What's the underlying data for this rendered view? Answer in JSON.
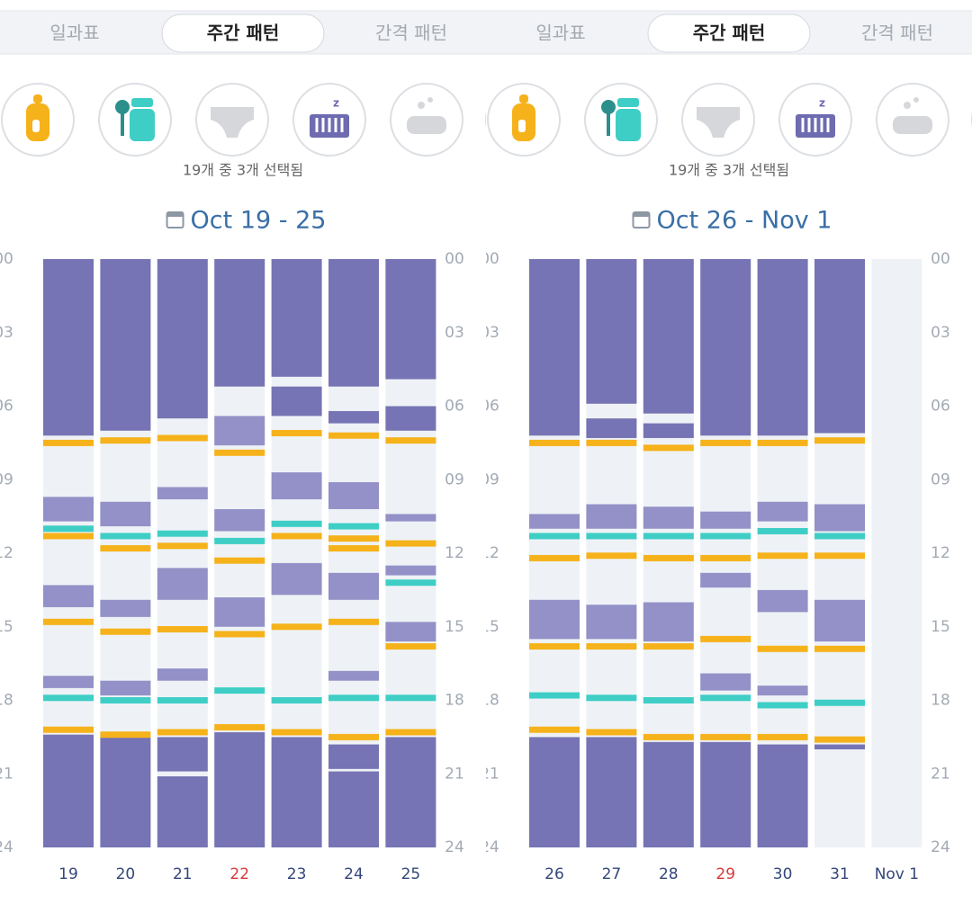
{
  "colors": {
    "sleep": "#7674b4",
    "nap": "#9391c8",
    "feed": "#f6b21a",
    "solid": "#3fcec6",
    "column": "#eef2f6",
    "day": "#34477a",
    "day_highlight": "#d93a3a"
  },
  "panels": [
    {
      "tabs": [
        "일과표",
        "주간 패턴",
        "간격 패턴"
      ],
      "selected_tab": 1,
      "selection": "19개 중 3개 선택됨",
      "title": "Oct 19 - 25",
      "chart": {
        "ylim": [
          0,
          24
        ],
        "yticks": [
          {
            "value": 0,
            "label": "00"
          },
          {
            "value": 3,
            "label": "03"
          },
          {
            "value": 6,
            "label": "06"
          },
          {
            "value": 9,
            "label": "09"
          },
          12,
          15,
          18,
          21,
          24
        ],
        "days": [
          {
            "label": "19",
            "highlight": false,
            "sleep": [
              [
                0,
                7.2
              ],
              [
                19.4,
                24
              ]
            ],
            "nap": [
              [
                9.7,
                10.7
              ],
              [
                13.3,
                14.2
              ],
              [
                17.0,
                17.5
              ]
            ],
            "feed": [
              7.5,
              11.3,
              14.8,
              19.2
            ],
            "solid": [
              11.0,
              17.9
            ]
          },
          {
            "label": "20",
            "highlight": false,
            "sleep": [
              [
                0,
                7.0
              ],
              [
                19.5,
                24
              ]
            ],
            "nap": [
              [
                9.9,
                10.9
              ],
              [
                13.9,
                14.6
              ],
              [
                17.2,
                17.8
              ]
            ],
            "feed": [
              7.4,
              11.8,
              15.2,
              19.4
            ],
            "solid": [
              11.3,
              18.0
            ]
          },
          {
            "label": "21",
            "highlight": false,
            "sleep": [
              [
                0,
                6.5
              ],
              [
                19.5,
                20.9
              ],
              [
                21.1,
                24
              ]
            ],
            "nap": [
              [
                9.3,
                9.8
              ],
              [
                12.6,
                13.9
              ],
              [
                16.7,
                17.2
              ]
            ],
            "feed": [
              7.3,
              11.7,
              15.1,
              19.3
            ],
            "solid": [
              11.2,
              18.0
            ]
          },
          {
            "label": "22",
            "highlight": true,
            "sleep": [
              [
                0,
                5.2
              ],
              [
                19.3,
                24
              ]
            ],
            "nap": [
              [
                6.4,
                7.6
              ],
              [
                10.2,
                11.1
              ],
              [
                13.8,
                15.0
              ]
            ],
            "feed": [
              7.9,
              12.3,
              15.3,
              19.1
            ],
            "solid": [
              11.5,
              17.6
            ]
          },
          {
            "label": "23",
            "highlight": false,
            "sleep": [
              [
                0,
                4.8
              ],
              [
                5.2,
                6.4
              ],
              [
                19.5,
                24
              ]
            ],
            "nap": [
              [
                8.7,
                9.8
              ],
              [
                12.4,
                13.7
              ]
            ],
            "feed": [
              7.1,
              11.3,
              15.0,
              19.3
            ],
            "solid": [
              10.8,
              18.0
            ]
          },
          {
            "label": "24",
            "highlight": false,
            "sleep": [
              [
                0,
                5.2
              ],
              [
                6.2,
                6.7
              ],
              [
                19.8,
                20.8
              ],
              [
                20.9,
                24
              ]
            ],
            "nap": [
              [
                9.1,
                10.2
              ],
              [
                12.8,
                13.9
              ],
              [
                16.8,
                17.2
              ]
            ],
            "feed": [
              7.2,
              11.4,
              11.8,
              14.8,
              19.5
            ],
            "solid": [
              10.9,
              17.9
            ]
          },
          {
            "label": "25",
            "highlight": false,
            "sleep": [
              [
                0,
                4.9
              ],
              [
                6.0,
                7.0
              ],
              [
                19.5,
                24
              ]
            ],
            "nap": [
              [
                10.4,
                10.7
              ],
              [
                12.5,
                12.9
              ],
              [
                14.8,
                15.6
              ]
            ],
            "feed": [
              7.4,
              11.6,
              15.8,
              19.3
            ],
            "solid": [
              13.2,
              17.9
            ]
          }
        ]
      }
    },
    {
      "tabs": [
        "일과표",
        "주간 패턴",
        "간격 패턴"
      ],
      "selected_tab": 1,
      "selection": "19개 중 3개 선택됨",
      "title": "Oct 26 - Nov 1",
      "chart": {
        "ylim": [
          0,
          24
        ],
        "yticks": [
          {
            "value": 0,
            "label": "00"
          },
          {
            "value": 3,
            "label": "03"
          },
          {
            "value": 6,
            "label": "06"
          },
          {
            "value": 9,
            "label": "09"
          },
          12,
          15,
          18,
          21,
          24
        ],
        "days": [
          {
            "label": "26",
            "highlight": false,
            "sleep": [
              [
                0,
                7.2
              ],
              [
                19.5,
                24
              ]
            ],
            "nap": [
              [
                10.4,
                11.0
              ],
              [
                13.9,
                15.5
              ]
            ],
            "feed": [
              7.5,
              12.2,
              15.8,
              19.2
            ],
            "solid": [
              11.3,
              17.8
            ]
          },
          {
            "label": "27",
            "highlight": false,
            "sleep": [
              [
                0,
                5.9
              ],
              [
                6.5,
                7.3
              ],
              [
                19.5,
                24
              ]
            ],
            "nap": [
              [
                10.0,
                11.0
              ],
              [
                14.1,
                15.5
              ]
            ],
            "feed": [
              7.5,
              12.1,
              15.8,
              19.3
            ],
            "solid": [
              11.3,
              17.9
            ]
          },
          {
            "label": "28",
            "highlight": false,
            "sleep": [
              [
                0,
                6.3
              ],
              [
                6.7,
                7.3
              ],
              [
                19.7,
                24
              ]
            ],
            "nap": [
              [
                10.1,
                11.0
              ],
              [
                14.0,
                15.6
              ]
            ],
            "feed": [
              7.7,
              12.2,
              15.8,
              19.5
            ],
            "solid": [
              11.3,
              18.0
            ]
          },
          {
            "label": "29",
            "highlight": true,
            "sleep": [
              [
                0,
                7.2
              ],
              [
                19.7,
                24
              ]
            ],
            "nap": [
              [
                10.3,
                11.0
              ],
              [
                12.8,
                13.4
              ],
              [
                16.9,
                17.6
              ]
            ],
            "feed": [
              7.5,
              12.2,
              15.5,
              19.5
            ],
            "solid": [
              11.3,
              17.9
            ]
          },
          {
            "label": "30",
            "highlight": false,
            "sleep": [
              [
                0,
                7.2
              ],
              [
                19.8,
                24
              ]
            ],
            "nap": [
              [
                9.9,
                10.7
              ],
              [
                13.5,
                14.4
              ],
              [
                17.4,
                17.8
              ]
            ],
            "feed": [
              7.5,
              12.1,
              15.9,
              19.5
            ],
            "solid": [
              11.1,
              18.2
            ]
          },
          {
            "label": "31",
            "highlight": false,
            "sleep": [
              [
                0,
                7.1
              ],
              [
                19.8,
                20.0
              ]
            ],
            "nap": [
              [
                10.0,
                11.1
              ],
              [
                13.9,
                15.6
              ]
            ],
            "feed": [
              7.4,
              12.1,
              15.9,
              19.6
            ],
            "solid": [
              11.3,
              18.1
            ]
          },
          {
            "label": "Nov 1",
            "highlight": false,
            "sleep": [],
            "nap": [],
            "feed": [],
            "solid": []
          }
        ]
      }
    }
  ]
}
